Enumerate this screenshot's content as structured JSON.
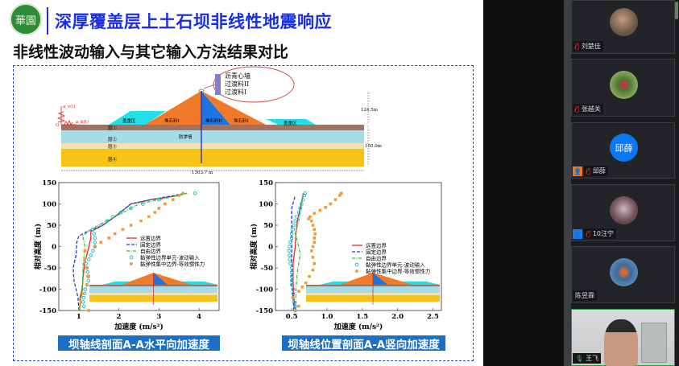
{
  "slide": {
    "logo_text": "華園",
    "title": "深厚覆盖层上土石坝非线性地震响应",
    "subtitle": "非线性波动输入与其它输入方法结果对比",
    "dam": {
      "zones": [
        "盖重区",
        "堆石料I",
        "堆石料II",
        "堆石料I",
        "盖重区"
      ],
      "layers": [
        "层①",
        "层②",
        "层③",
        "层④"
      ],
      "wall_label": "防渗墙",
      "callout": [
        "沥青心墙",
        "过渡料II",
        "过渡料I"
      ],
      "height_dam": "124.5m",
      "height_found": "150.0m",
      "width": "1303.7 m",
      "input_v": "a_v(t)",
      "input_h": "a_h(t)",
      "origin": "O"
    },
    "captions": [
      "坝轴线剖面A-A水平向加速度",
      "坝轴线位置剖面A-A竖向加速度"
    ]
  },
  "chart_data": [
    {
      "type": "line",
      "title": "坝轴线剖面A-A水平向加速度",
      "xlabel": "加速度 (m/s²)",
      "ylabel": "相对高度 (m)",
      "xlim": [
        0.5,
        4.5
      ],
      "ylim": [
        -150,
        150
      ],
      "xticks": [
        1,
        2,
        3,
        4
      ],
      "xtick_labels": [
        "1",
        "2",
        "3",
        "4"
      ],
      "yticks": [
        150,
        100,
        50,
        0,
        -50,
        -100,
        -150
      ],
      "ytick_labels": [
        "150",
        "100",
        "50",
        "0",
        "-50",
        "-100",
        "-150"
      ],
      "legend": "center-right",
      "series": [
        {
          "name": "远置边界",
          "style": "solid",
          "color": "#e8262a",
          "y": [
            -150,
            -120,
            -100,
            -60,
            -40,
            -20,
            0,
            20,
            35,
            40,
            50,
            70,
            100,
            110,
            120,
            125
          ],
          "x": [
            1.02,
            1.03,
            1.08,
            1.12,
            1.14,
            1.2,
            1.25,
            1.3,
            1.3,
            1.4,
            1.6,
            1.9,
            2.3,
            2.8,
            3.5,
            3.7
          ]
        },
        {
          "name": "固定边界",
          "style": "dash",
          "color": "#1f3fd8",
          "y": [
            -150,
            -120,
            -100,
            -80,
            -50,
            -20,
            10,
            25,
            35,
            50,
            70,
            100,
            110,
            120,
            125
          ],
          "x": [
            1.0,
            0.98,
            0.93,
            0.88,
            0.86,
            0.93,
            0.95,
            1.0,
            1.2,
            1.6,
            1.9,
            2.3,
            2.8,
            3.4,
            3.6
          ]
        },
        {
          "name": "自由边界",
          "style": "dashdot",
          "color": "#2ecc2e",
          "y": [
            -150,
            -120,
            -100,
            -50,
            0,
            25,
            40,
            50,
            70,
            100,
            110,
            120,
            125
          ],
          "x": [
            1.0,
            1.06,
            1.1,
            1.1,
            1.15,
            1.1,
            1.3,
            1.5,
            1.9,
            2.5,
            3.0,
            3.5,
            3.7
          ]
        },
        {
          "name": "黏弹性边界单元-波动输入",
          "style": "circle",
          "color": "#19b7c9",
          "y": [
            -140,
            -130,
            -120,
            -110,
            -100,
            -90,
            -80,
            -70,
            -60,
            -50,
            -40,
            -30,
            -20,
            -10,
            0,
            10,
            20,
            30,
            40,
            50,
            60,
            70,
            80,
            90,
            100,
            110,
            125
          ],
          "x": [
            1.12,
            1.1,
            1.12,
            1.14,
            1.16,
            1.2,
            1.24,
            1.24,
            1.22,
            1.2,
            1.18,
            1.25,
            1.3,
            1.35,
            1.4,
            1.4,
            1.4,
            1.38,
            1.35,
            1.55,
            1.7,
            1.85,
            2.05,
            2.3,
            2.6,
            3.0,
            3.9
          ]
        },
        {
          "name": "黏弹性集中边界-等效惯性力",
          "style": "square",
          "color": "#f59a3a",
          "y": [
            -150,
            -130,
            -110,
            -90,
            -70,
            -50,
            -30,
            -10,
            0,
            10,
            20,
            30,
            40,
            50,
            60,
            70,
            80,
            90,
            100,
            110,
            120,
            125
          ],
          "x": [
            1.25,
            1.05,
            1.1,
            1.2,
            1.22,
            1.2,
            1.15,
            1.15,
            1.4,
            1.55,
            1.75,
            1.9,
            2.1,
            2.3,
            2.55,
            2.75,
            2.9,
            3.0,
            3.15,
            3.35,
            3.5,
            3.6
          ]
        }
      ]
    },
    {
      "type": "line",
      "title": "坝轴线位置剖面A-A竖向加速度",
      "xlabel": "加速度 (m/s²)",
      "ylabel": "相对高度 (m)",
      "xlim": [
        0.27,
        2.62
      ],
      "ylim": [
        -150,
        150
      ],
      "xticks": [
        0.5,
        1.0,
        1.5,
        2.0,
        2.5
      ],
      "xtick_labels": [
        "0.5",
        "1.0",
        "1.5",
        "2.0",
        "2.5"
      ],
      "yticks": [
        150,
        100,
        50,
        0,
        -50,
        -100,
        -150
      ],
      "ytick_labels": [
        "150",
        "100",
        "50",
        "0",
        "-50",
        "-100",
        "-150"
      ],
      "legend": "center-right",
      "series": [
        {
          "name": "远置边界",
          "style": "solid",
          "color": "#e8262a",
          "y": [
            -150,
            -120,
            -80,
            -40,
            0,
            30,
            60,
            90,
            120,
            125
          ],
          "x": [
            0.55,
            0.53,
            0.52,
            0.52,
            0.55,
            0.56,
            0.58,
            0.62,
            0.66,
            0.66
          ]
        },
        {
          "name": "固定边界",
          "style": "dash",
          "color": "#1f3fd8",
          "y": [
            -150,
            -120,
            -90,
            -60,
            -30,
            0,
            30,
            60,
            90,
            120
          ],
          "x": [
            0.53,
            0.52,
            0.5,
            0.5,
            0.5,
            0.5,
            0.5,
            0.5,
            0.5,
            0.55
          ]
        },
        {
          "name": "自由边界",
          "style": "dashdot",
          "color": "#2ecc2e",
          "y": [
            -150,
            -100,
            -60,
            -20,
            0,
            30,
            60,
            90,
            120
          ],
          "x": [
            0.56,
            0.56,
            0.58,
            0.62,
            0.6,
            0.55,
            0.6,
            0.63,
            0.66
          ]
        },
        {
          "name": "黏弹性边界单元-波动输入",
          "style": "circle",
          "color": "#19b7c9",
          "y": [
            -150,
            -140,
            -130,
            -120,
            -110,
            -100,
            -90,
            -80,
            -70,
            -60,
            -50,
            -40,
            -30,
            -20,
            -10,
            0,
            10,
            20,
            30,
            40,
            50,
            60,
            70,
            80,
            90,
            100,
            110,
            120,
            125
          ],
          "x": [
            0.55,
            0.55,
            0.53,
            0.52,
            0.52,
            0.52,
            0.5,
            0.5,
            0.5,
            0.5,
            0.5,
            0.48,
            0.47,
            0.47,
            0.46,
            0.47,
            0.48,
            0.5,
            0.5,
            0.52,
            0.53,
            0.55,
            0.57,
            0.6,
            0.62,
            0.64,
            0.66,
            0.68,
            0.69
          ]
        },
        {
          "name": "黏弹性集中边界-等效惯性力",
          "style": "square",
          "color": "#f59a3a",
          "y": [
            -150,
            -140,
            -120,
            -105,
            -95,
            -85,
            -70,
            -55,
            -40,
            -25,
            -10,
            0,
            10,
            20,
            30,
            40,
            50,
            60,
            65,
            70,
            78,
            85,
            92,
            100,
            110,
            120,
            125
          ],
          "x": [
            0.55,
            0.6,
            0.52,
            0.6,
            0.65,
            0.7,
            0.75,
            0.8,
            0.82,
            0.8,
            0.78,
            0.8,
            0.82,
            0.82,
            0.83,
            0.82,
            0.8,
            0.78,
            0.74,
            0.76,
            0.82,
            0.9,
            0.98,
            1.05,
            1.12,
            1.18,
            1.2
          ]
        }
      ]
    }
  ],
  "participants": [
    {
      "name": "刘楚佳",
      "muted": true
    },
    {
      "name": "张越关",
      "muted": true
    },
    {
      "name": "邱薛",
      "avatar_text": "邱薛",
      "muted": true,
      "role": "host"
    },
    {
      "name": "10汪宁",
      "muted": true,
      "role": "cohost"
    },
    {
      "name": "陈昱霖"
    },
    {
      "name": "王飞",
      "muted": false,
      "speaking": true
    }
  ]
}
